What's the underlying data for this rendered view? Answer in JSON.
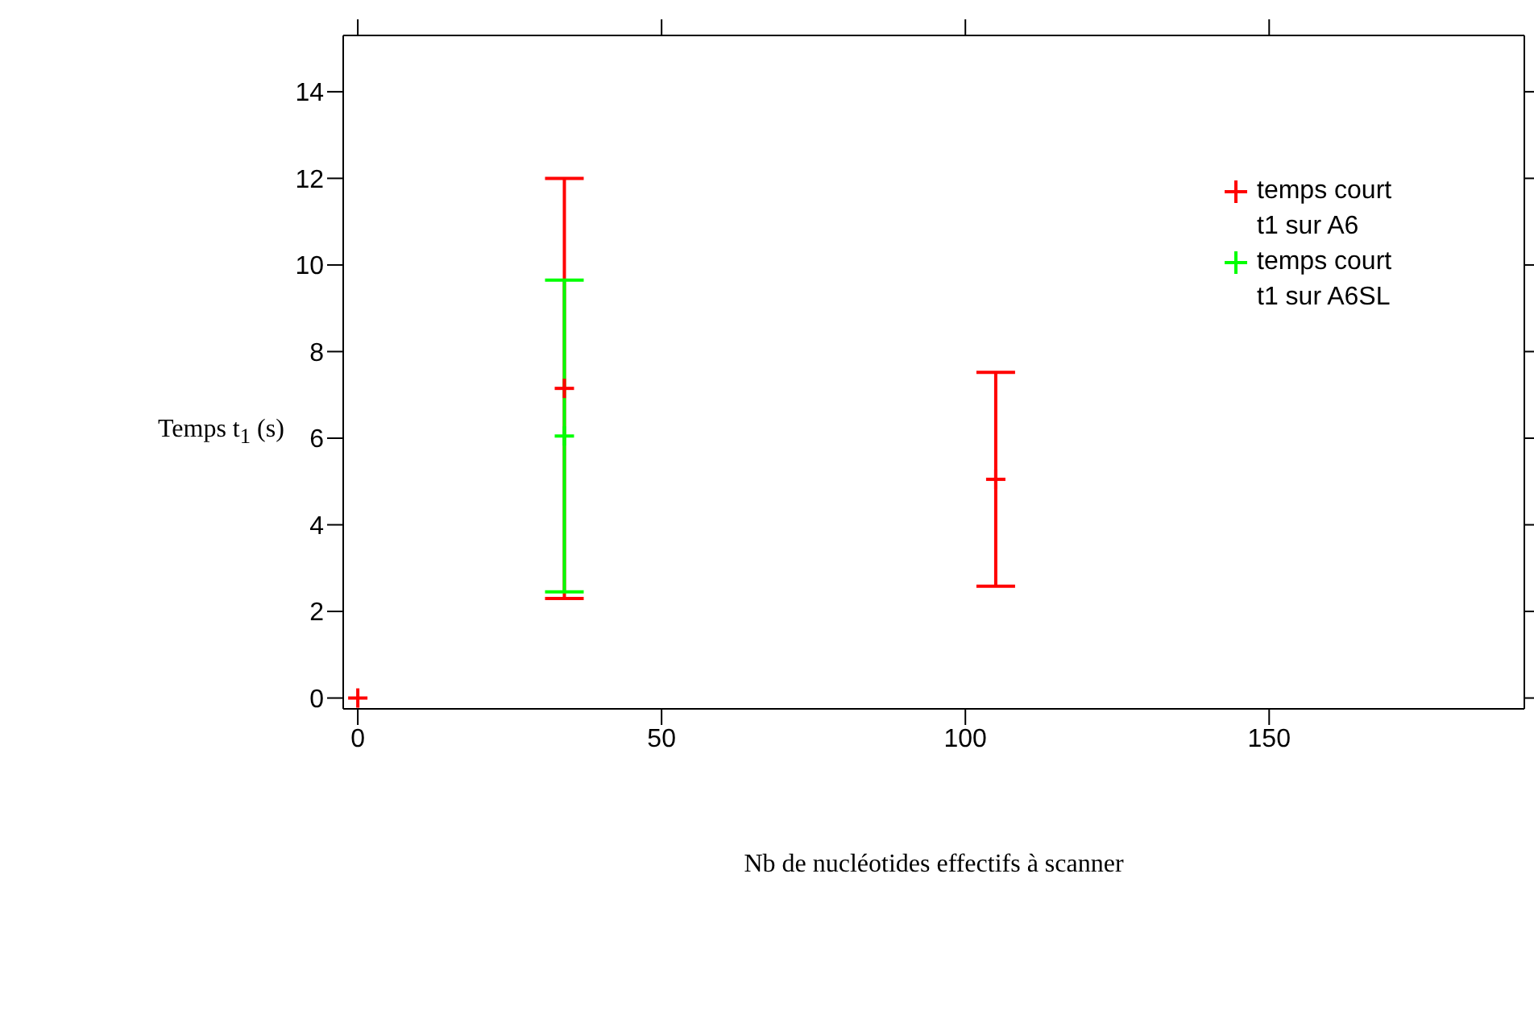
{
  "chart_data": {
    "type": "scatter",
    "xlabel": "Nb de nucléotides effectifs à scanner",
    "ylabel": "Temps t$_{1}$ (s)",
    "xlim": [
      -2.4,
      192
    ],
    "xticks": [
      0,
      50,
      100,
      150
    ],
    "ylim": [
      -0.25,
      15.3
    ],
    "yticks": [
      0,
      2,
      4,
      6,
      8,
      10,
      12,
      14
    ],
    "marker": "cross",
    "legend": "top right",
    "series": [
      {
        "name": "temps court t1 sur A6",
        "color": "#ff0000",
        "x": [
          0,
          34,
          105
        ],
        "values": [
          0,
          7.15,
          5.05
        ],
        "errors": [
          null,
          4.85,
          2.47
        ]
      },
      {
        "name": "temps court t1 sur A6SL",
        "color": "#00ff00",
        "x": [
          34
        ],
        "values": [
          6.05
        ],
        "errors": [
          3.6
        ]
      }
    ]
  }
}
